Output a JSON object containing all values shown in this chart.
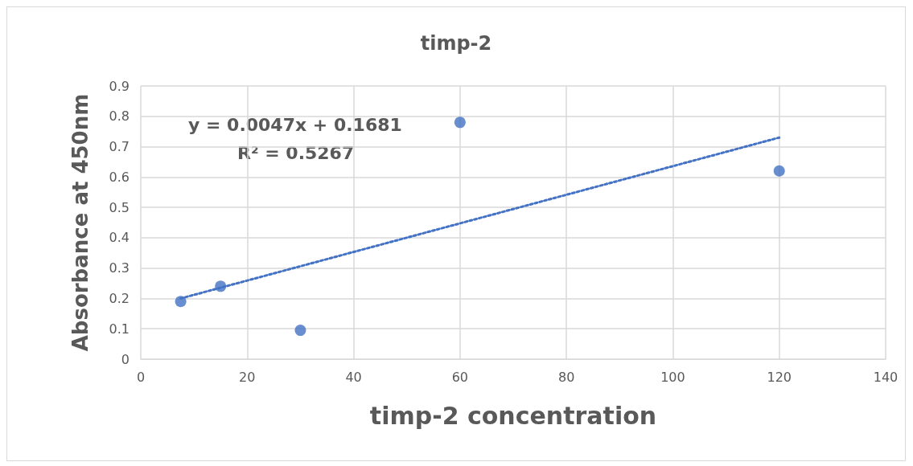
{
  "chart_data": {
    "type": "scatter",
    "title": "timp-2",
    "xlabel": "timp-2 concentration",
    "ylabel": "Absorbance at 450nm",
    "series": [
      {
        "color": "#4472c4",
        "x": [
          7.5,
          15,
          30,
          60,
          120
        ],
        "values": [
          0.19,
          0.24,
          0.095,
          0.78,
          0.62
        ],
        "marker": "circle"
      },
      {
        "type": "line",
        "color": "#4472c4",
        "x": [
          7.5,
          120
        ],
        "values": [
          0.2,
          0.73
        ],
        "marker": "none",
        "line_style": "dotted"
      }
    ],
    "annotations": [
      "y = 0.0047x + 0.1681",
      "R² = 0.5267"
    ],
    "xlim": [
      0,
      140
    ],
    "xticks": [
      0,
      20,
      40,
      60,
      80,
      100,
      120,
      140
    ],
    "ylim": [
      0,
      0.9
    ],
    "yticks": [
      0,
      0.1,
      0.2,
      0.3,
      0.4,
      0.5,
      0.6,
      0.7,
      0.8,
      0.9
    ],
    "grid": true
  }
}
